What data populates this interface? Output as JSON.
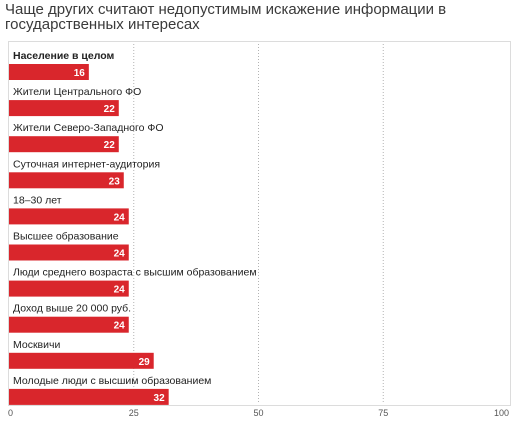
{
  "title": "Чаще других считают недопустимым искажение информации в государственных интересах",
  "colors": {
    "bar": "#d9262c",
    "grid": "#b3b3b3",
    "frame": "#dcdcdc",
    "label": "#222222",
    "value_text": "#ffffff"
  },
  "chart_data": {
    "type": "bar",
    "orientation": "horizontal",
    "categories": [
      "Население в целом",
      "Жители Центрального ФО",
      "Жители Северо-Западного ФО",
      "Суточная интернет-аудитория",
      "18–30 лет",
      "Высшее образование",
      "Люди среднего возраста с высшим образованием",
      "Доход выше 20 000 руб.",
      "Москвичи",
      "Молодые люди с высшим образованием"
    ],
    "values": [
      16,
      22,
      22,
      23,
      24,
      24,
      24,
      24,
      29,
      32
    ],
    "bold_categories": [
      "Население в целом"
    ],
    "xlim": [
      0,
      100
    ],
    "xticks": [
      0,
      25,
      50,
      75,
      100
    ],
    "grid": true,
    "data_labels": true
  }
}
